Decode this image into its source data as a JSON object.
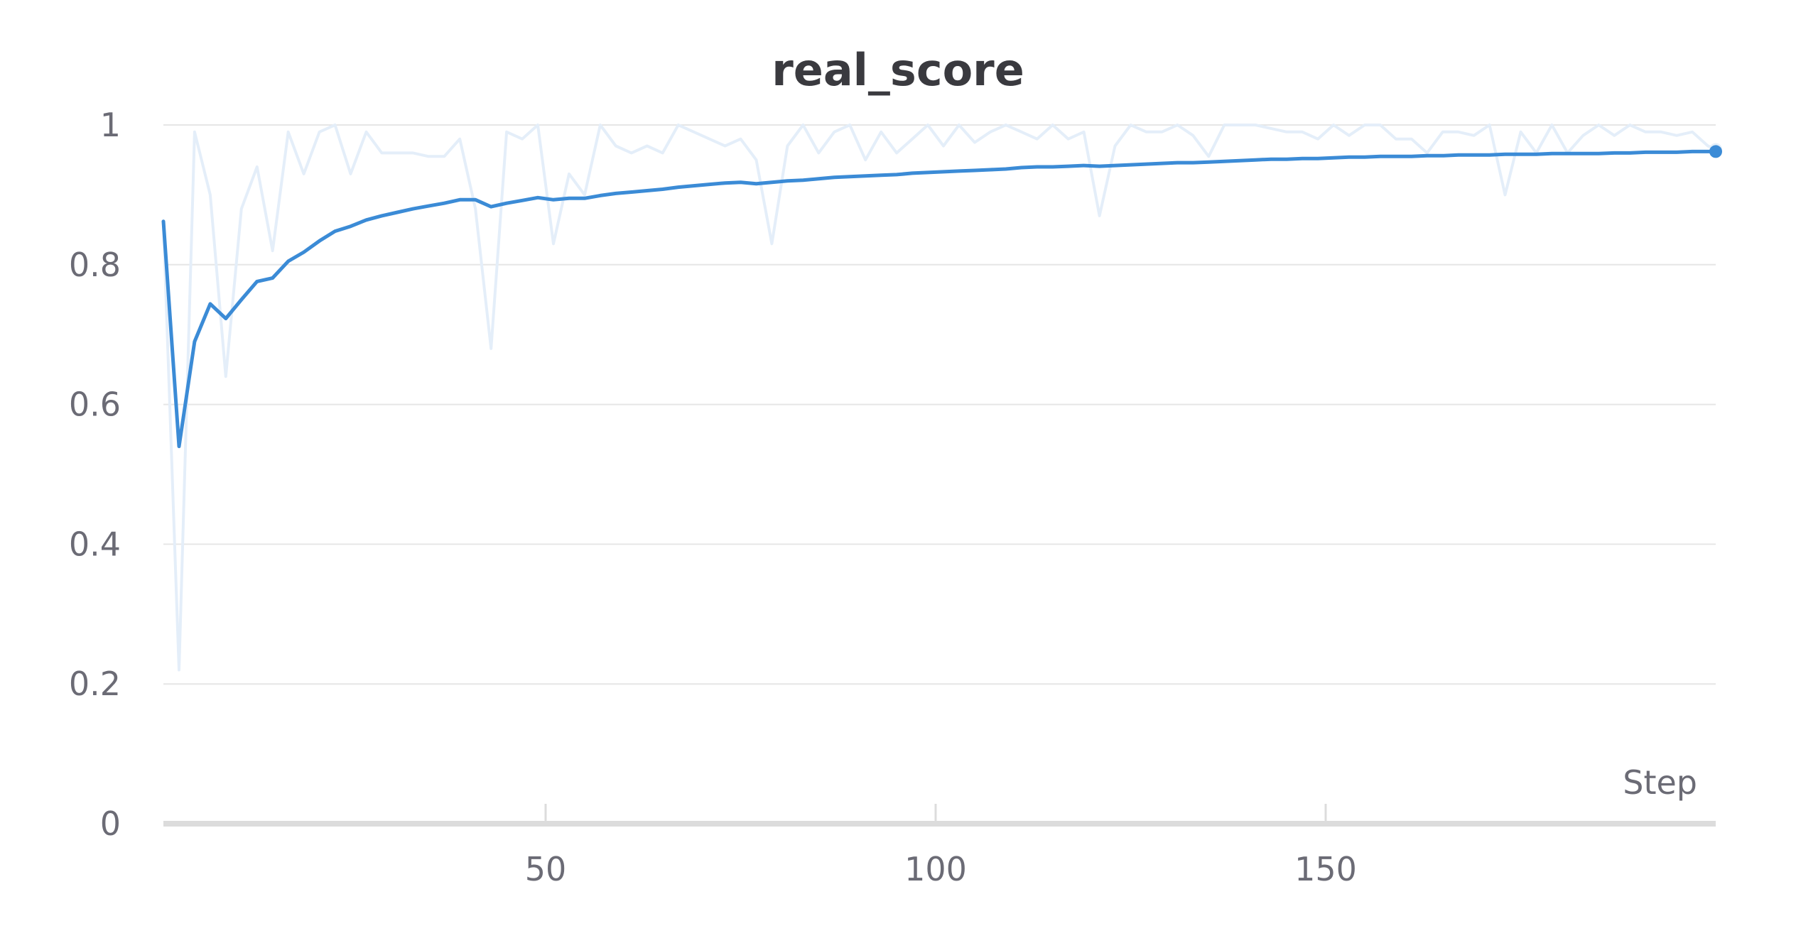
{
  "chart_data": {
    "type": "line",
    "title": "real_score",
    "xlabel": "Step",
    "ylabel": "",
    "xlim": [
      1,
      200
    ],
    "ylim": [
      0,
      1
    ],
    "x_ticks": [
      50,
      100,
      150
    ],
    "x_tick_labels": [
      "50",
      "100",
      "150"
    ],
    "y_ticks": [
      0,
      0.2,
      0.4,
      0.6,
      0.8,
      1
    ],
    "y_tick_labels": [
      "0",
      "0.2",
      "0.4",
      "0.6",
      "0.8",
      "1"
    ],
    "grid": true,
    "legend": "none",
    "colors": {
      "smoothed": "#3b8bd6",
      "raw": "#e4eef9",
      "grid": "#e6e6e6",
      "axis": "#dcdcdc",
      "tick_text": "#6b6b75",
      "title": "#3a3a3f"
    },
    "series": [
      {
        "role": "raw",
        "x": [
          1,
          3,
          5,
          7,
          9,
          11,
          13,
          15,
          17,
          19,
          21,
          23,
          25,
          27,
          29,
          31,
          33,
          35,
          37,
          39,
          41,
          43,
          45,
          47,
          49,
          51,
          53,
          55,
          57,
          59,
          61,
          63,
          65,
          67,
          69,
          71,
          73,
          75,
          77,
          79,
          81,
          83,
          85,
          87,
          89,
          91,
          93,
          95,
          97,
          99,
          101,
          103,
          105,
          107,
          109,
          111,
          113,
          115,
          117,
          119,
          121,
          123,
          125,
          127,
          129,
          131,
          133,
          135,
          137,
          139,
          141,
          143,
          145,
          147,
          149,
          151,
          153,
          155,
          157,
          159,
          161,
          163,
          165,
          167,
          169,
          171,
          173,
          175,
          177,
          179,
          181,
          183,
          185,
          187,
          189,
          191,
          193,
          195,
          197,
          199,
          200
        ],
        "y": [
          0.86,
          0.22,
          0.99,
          0.9,
          0.64,
          0.88,
          0.94,
          0.82,
          0.99,
          0.93,
          0.99,
          1.0,
          0.93,
          0.99,
          0.96,
          0.96,
          0.96,
          0.955,
          0.955,
          0.98,
          0.88,
          0.68,
          0.99,
          0.98,
          1.0,
          0.83,
          0.93,
          0.9,
          1.0,
          0.97,
          0.96,
          0.97,
          0.96,
          1.0,
          0.99,
          0.98,
          0.97,
          0.98,
          0.95,
          0.83,
          0.97,
          1.0,
          0.96,
          0.99,
          1.0,
          0.95,
          0.99,
          0.96,
          0.98,
          1.0,
          0.97,
          1.0,
          0.975,
          0.99,
          1.0,
          0.99,
          0.98,
          1.0,
          0.98,
          0.99,
          0.87,
          0.97,
          1.0,
          0.99,
          0.99,
          1.0,
          0.985,
          0.955,
          1.0,
          1.0,
          1.0,
          0.995,
          0.99,
          0.99,
          0.98,
          1.0,
          0.985,
          1.0,
          1.0,
          0.98,
          0.98,
          0.96,
          0.99,
          0.99,
          0.985,
          1.0,
          0.9,
          0.99,
          0.96,
          1.0,
          0.96,
          0.985,
          1.0,
          0.985,
          1.0,
          0.99,
          0.99,
          0.985,
          0.99,
          0.97,
          0.965
        ]
      },
      {
        "role": "smoothed",
        "x": [
          1,
          3,
          5,
          7,
          9,
          11,
          13,
          15,
          17,
          19,
          21,
          23,
          25,
          27,
          29,
          31,
          33,
          35,
          37,
          39,
          41,
          43,
          45,
          47,
          49,
          51,
          53,
          55,
          57,
          59,
          61,
          63,
          65,
          67,
          69,
          71,
          73,
          75,
          77,
          79,
          81,
          83,
          85,
          87,
          89,
          91,
          93,
          95,
          97,
          99,
          101,
          103,
          105,
          107,
          109,
          111,
          113,
          115,
          117,
          119,
          121,
          123,
          125,
          127,
          129,
          131,
          133,
          135,
          137,
          139,
          141,
          143,
          145,
          147,
          149,
          151,
          153,
          155,
          157,
          159,
          161,
          163,
          165,
          167,
          169,
          171,
          173,
          175,
          177,
          179,
          181,
          183,
          185,
          187,
          189,
          191,
          193,
          195,
          197,
          199,
          200
        ],
        "y": [
          0.862,
          0.54,
          0.69,
          0.744,
          0.723,
          0.75,
          0.776,
          0.781,
          0.805,
          0.818,
          0.834,
          0.848,
          0.855,
          0.864,
          0.87,
          0.875,
          0.88,
          0.884,
          0.888,
          0.893,
          0.893,
          0.883,
          0.888,
          0.892,
          0.896,
          0.893,
          0.895,
          0.895,
          0.899,
          0.902,
          0.904,
          0.906,
          0.908,
          0.911,
          0.913,
          0.915,
          0.917,
          0.918,
          0.916,
          0.918,
          0.92,
          0.921,
          0.923,
          0.925,
          0.926,
          0.927,
          0.928,
          0.929,
          0.931,
          0.932,
          0.933,
          0.934,
          0.935,
          0.936,
          0.937,
          0.939,
          0.94,
          0.94,
          0.941,
          0.942,
          0.941,
          0.942,
          0.943,
          0.944,
          0.945,
          0.946,
          0.946,
          0.947,
          0.948,
          0.949,
          0.95,
          0.951,
          0.951,
          0.952,
          0.952,
          0.953,
          0.954,
          0.954,
          0.955,
          0.955,
          0.955,
          0.956,
          0.956,
          0.957,
          0.957,
          0.957,
          0.958,
          0.958,
          0.958,
          0.959,
          0.959,
          0.959,
          0.959,
          0.96,
          0.96,
          0.961,
          0.961,
          0.961,
          0.962,
          0.962,
          0.962
        ]
      }
    ]
  }
}
